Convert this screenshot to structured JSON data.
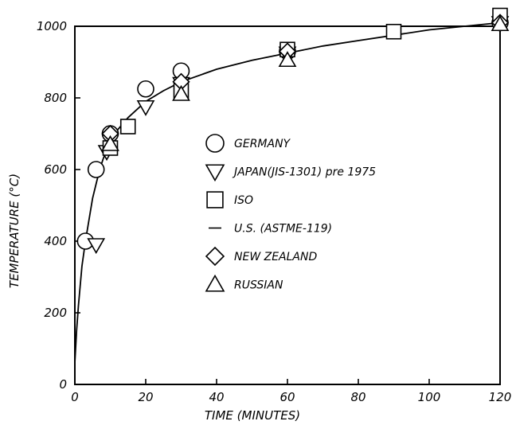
{
  "chart_data": {
    "type": "scatter",
    "xlabel": "TIME (MINUTES)",
    "ylabel": "TEMPERATURE (°C)",
    "xlim": [
      0,
      120
    ],
    "ylim": [
      0,
      1000
    ],
    "xticks": [
      0,
      20,
      40,
      60,
      80,
      100,
      120
    ],
    "yticks": [
      0,
      200,
      400,
      600,
      800,
      1000
    ],
    "grid": false,
    "legend_position": "center-right",
    "series": [
      {
        "name": "GERMANY",
        "marker": "circle",
        "points": [
          [
            3,
            400
          ],
          [
            6,
            600
          ],
          [
            10,
            700
          ],
          [
            20,
            825
          ],
          [
            30,
            875
          ],
          [
            60,
            930
          ],
          [
            120,
            1010
          ]
        ]
      },
      {
        "name": "JAPAN(JIS-1301) pre 1975",
        "marker": "triangle-down",
        "points": [
          [
            6,
            390
          ],
          [
            9,
            650
          ],
          [
            20,
            775
          ],
          [
            30,
            840
          ],
          [
            60,
            925
          ],
          [
            120,
            1010
          ]
        ]
      },
      {
        "name": "ISO",
        "marker": "square",
        "points": [
          [
            10,
            660
          ],
          [
            15,
            720
          ],
          [
            30,
            820
          ],
          [
            60,
            935
          ],
          [
            90,
            985
          ],
          [
            120,
            1030
          ]
        ]
      },
      {
        "name": "U.S. (ASTME-119)",
        "marker": "line",
        "points": [
          [
            0,
            60
          ],
          [
            0.5,
            150
          ],
          [
            1,
            220
          ],
          [
            2,
            330
          ],
          [
            3,
            400
          ],
          [
            4,
            460
          ],
          [
            5,
            520
          ],
          [
            6,
            560
          ],
          [
            7,
            600
          ],
          [
            8,
            630
          ],
          [
            10,
            680
          ],
          [
            12,
            710
          ],
          [
            15,
            745
          ],
          [
            20,
            790
          ],
          [
            25,
            820
          ],
          [
            30,
            845
          ],
          [
            40,
            880
          ],
          [
            50,
            905
          ],
          [
            60,
            925
          ],
          [
            70,
            945
          ],
          [
            80,
            960
          ],
          [
            90,
            975
          ],
          [
            100,
            990
          ],
          [
            110,
            1000
          ],
          [
            120,
            1010
          ]
        ]
      },
      {
        "name": "NEW ZEALAND",
        "marker": "diamond",
        "points": [
          [
            10,
            700
          ],
          [
            30,
            845
          ],
          [
            60,
            930
          ],
          [
            120,
            1010
          ]
        ]
      },
      {
        "name": "RUSSIAN",
        "marker": "triangle-up",
        "points": [
          [
            10,
            670
          ],
          [
            30,
            810
          ],
          [
            60,
            905
          ],
          [
            120,
            1005
          ]
        ]
      }
    ]
  }
}
